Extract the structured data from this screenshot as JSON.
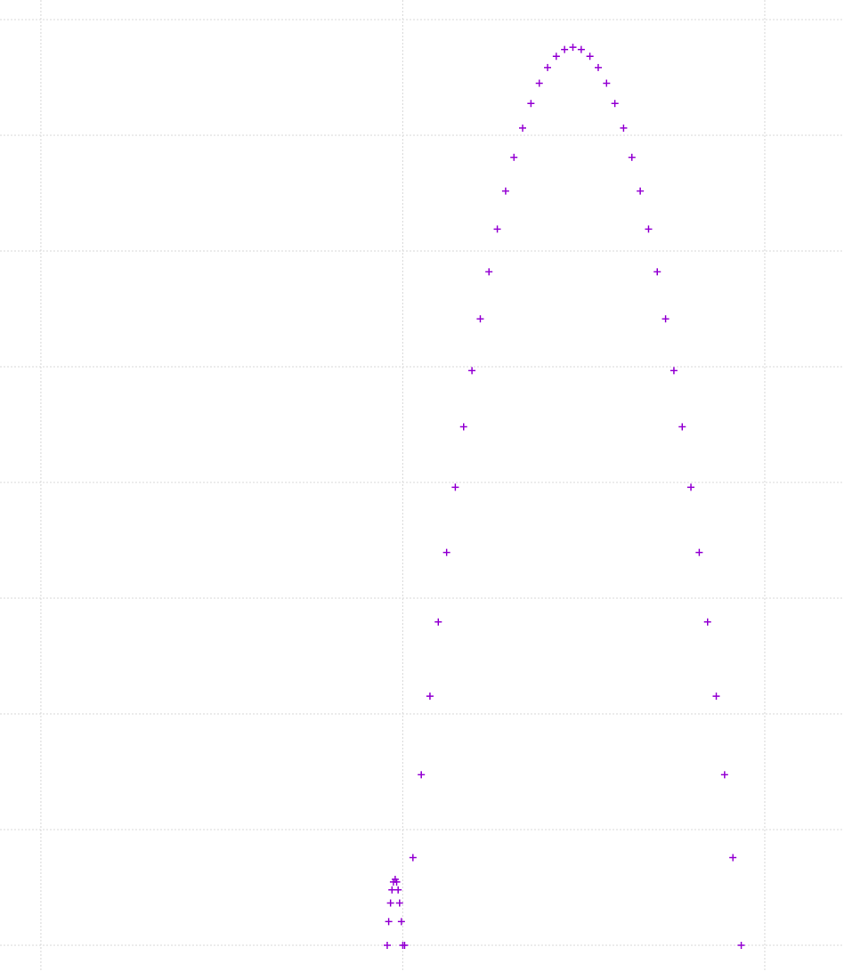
{
  "chart_data": {
    "type": "scatter",
    "xlim": [
      -0.113,
      2.219
    ],
    "ylim": [
      -0.231,
      8.169
    ],
    "xticks": [
      0,
      1,
      2
    ],
    "yticks": [
      0,
      1,
      2,
      3,
      4,
      5,
      6,
      7,
      8
    ],
    "grid": true,
    "marker": "+",
    "series": [
      {
        "color": "#9400d3",
        "x": [
          0.957,
          0.961,
          0.966,
          0.97,
          0.974,
          0.979,
          0.983,
          0.987,
          0.991,
          0.996,
          1.0
        ],
        "values": [
          0,
          0.205,
          0.365,
          0.479,
          0.547,
          0.57,
          0.547,
          0.479,
          0.365,
          0.205,
          0
        ]
      },
      {
        "color": "#9400d3",
        "x": [
          1.005,
          1.028,
          1.051,
          1.075,
          1.098,
          1.121,
          1.145,
          1.168,
          1.191,
          1.214,
          1.238,
          1.261,
          1.284,
          1.307,
          1.331,
          1.354,
          1.377,
          1.4,
          1.424,
          1.447,
          1.47,
          1.493,
          1.517,
          1.54,
          1.563,
          1.586,
          1.61,
          1.633,
          1.656,
          1.679,
          1.703,
          1.726,
          1.749,
          1.772,
          1.796,
          1.819,
          1.842,
          1.866,
          1.889,
          1.912,
          1.935
        ],
        "values": [
          0,
          0.757,
          1.474,
          2.153,
          2.794,
          3.395,
          3.958,
          4.481,
          4.966,
          5.413,
          5.82,
          6.189,
          6.518,
          6.809,
          7.062,
          7.275,
          7.45,
          7.585,
          7.682,
          7.741,
          7.76,
          7.741,
          7.682,
          7.585,
          7.45,
          7.275,
          7.062,
          6.809,
          6.518,
          6.189,
          5.82,
          5.413,
          4.966,
          4.481,
          3.958,
          3.395,
          2.794,
          2.153,
          1.474,
          0.757,
          0
        ]
      }
    ]
  }
}
